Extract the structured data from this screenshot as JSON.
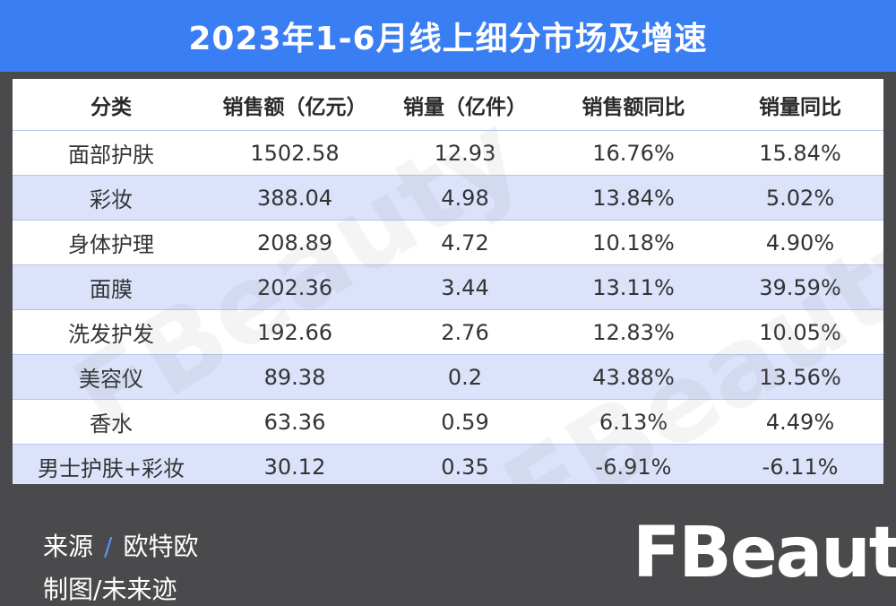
{
  "header": {
    "title": "2023年1-6月线上细分市场及增速"
  },
  "chart_data": {
    "type": "table",
    "title": "2023年1-6月线上细分市场及增速",
    "columns": [
      "分类",
      "销售额（亿元）",
      "销量（亿件）",
      "销售额同比",
      "销量同比"
    ],
    "rows": [
      [
        "面部护肤",
        "1502.58",
        "12.93",
        "16.76%",
        "15.84%"
      ],
      [
        "彩妆",
        "388.04",
        "4.98",
        "13.84%",
        "5.02%"
      ],
      [
        "身体护理",
        "208.89",
        "4.72",
        "10.18%",
        "4.90%"
      ],
      [
        "面膜",
        "202.36",
        "3.44",
        "13.11%",
        "39.59%"
      ],
      [
        "洗发护发",
        "192.66",
        "2.76",
        "12.83%",
        "10.05%"
      ],
      [
        "美容仪",
        "89.38",
        "0.2",
        "43.88%",
        "13.56%"
      ],
      [
        "香水",
        "63.36",
        "0.59",
        "6.13%",
        "4.49%"
      ],
      [
        "男士护肤+彩妆",
        "30.12",
        "0.35",
        "-6.91%",
        "-6.11%"
      ]
    ]
  },
  "footer": {
    "source_label": "来源",
    "separator": "/",
    "source_value": "欧特欧",
    "made_label": "制图",
    "made_separator": "/",
    "made_value": "未来迹"
  },
  "brand": {
    "logo_text": "FBeauty",
    "watermark_text": "FBeauty"
  },
  "colors": {
    "title_bg": "#3a7ef3",
    "stripe": "#dbe2fa",
    "footer_bg": "#4a4a4c"
  }
}
